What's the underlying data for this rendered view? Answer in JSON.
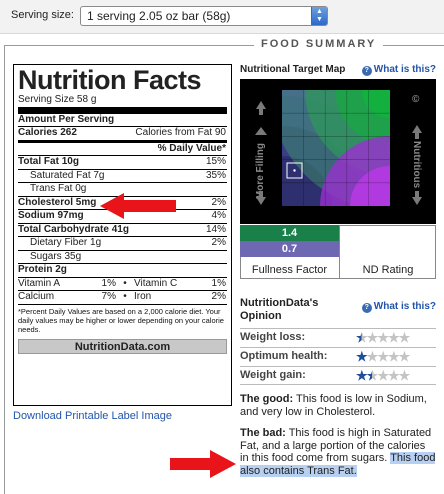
{
  "serving": {
    "label": "Serving size:",
    "selected": "1 serving 2.05 oz bar (58g)"
  },
  "summary_title": "FOOD SUMMARY",
  "label": {
    "title": "Nutrition Facts",
    "serving_size": "Serving Size  58 g",
    "amount_per_serving": "Amount Per Serving",
    "calories": "Calories 262",
    "calories_from_fat": "Calories from Fat 90",
    "dv_header": "% Daily Value*",
    "rows": [
      {
        "name": "Total Fat 10g",
        "dv": "15%"
      },
      {
        "name": "Saturated Fat 7g",
        "dv": "35%"
      },
      {
        "name": "Trans Fat 0g",
        "dv": ""
      },
      {
        "name": "Cholesterol 5mg",
        "dv": "2%"
      },
      {
        "name": "Sodium 97mg",
        "dv": "4%"
      },
      {
        "name": "Total Carbohydrate 41g",
        "dv": "14%"
      },
      {
        "name": "Dietary Fiber 1g",
        "dv": "2%"
      },
      {
        "name": "Sugars 35g",
        "dv": ""
      },
      {
        "name": "Protein 2g",
        "dv": ""
      }
    ],
    "vitamins": [
      {
        "left_name": "Vitamin A",
        "left_val": "1%",
        "right_name": "Vitamin C",
        "right_val": "1%"
      },
      {
        "left_name": "Calcium",
        "left_val": "7%",
        "right_name": "Iron",
        "right_val": "2%"
      }
    ],
    "footnote": "*Percent Daily Values are based on a 2,000 calorie diet. Your daily values may be higher or lower depending on your calorie needs.",
    "brand": "NutritionData.com"
  },
  "download_link": "Download Printable Label Image",
  "map": {
    "title": "Nutritional Target Map",
    "what_link": "What is this?",
    "left_axis": "More Filling",
    "right_axis": "Nutritious",
    "copyright": "©"
  },
  "fullness_factor": {
    "value": "1.4",
    "label": "Fullness Factor"
  },
  "nd_rating": {
    "value": "0.7",
    "label": "ND Rating"
  },
  "opinion": {
    "title": "NutritionData's Opinion",
    "what_link": "What is this?",
    "items": [
      {
        "label": "Weight loss:",
        "stars": 0.5
      },
      {
        "label": "Optimum health:",
        "stars": 1
      },
      {
        "label": "Weight gain:",
        "stars": 1.5
      }
    ]
  },
  "good": {
    "title": "The good:",
    "text": "This food is low in Sodium, and very low in Cholesterol."
  },
  "bad": {
    "title": "The bad:",
    "text": "This food is high in Saturated Fat, and a large portion of the calories in this food come from sugars.",
    "highlight": "This food also contains Trans Fat."
  },
  "colors": {
    "link": "#2255aa",
    "ff_green": "#19804a",
    "nd_purple": "#6e67b2",
    "arrow_red": "#e8141a"
  }
}
